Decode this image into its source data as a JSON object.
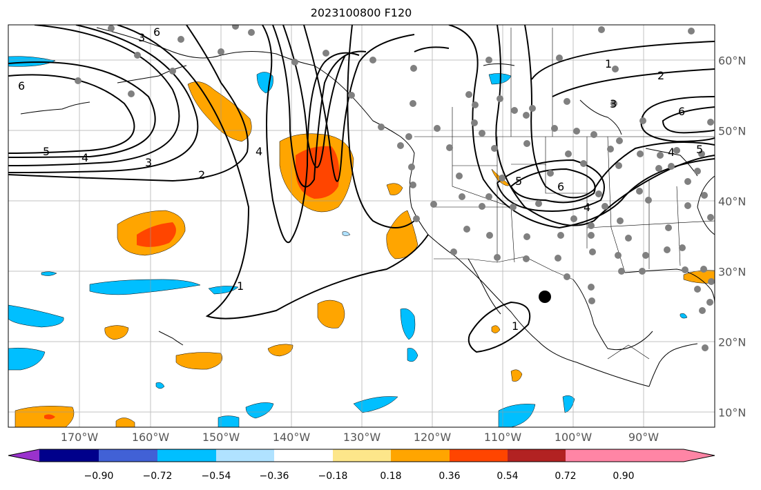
{
  "title": "2023100800 F120",
  "longitude_labels": [
    "170°W",
    "160°W",
    "150°W",
    "140°W",
    "130°W",
    "120°W",
    "110°W",
    "100°W",
    "90°W"
  ],
  "latitude_labels": [
    "60°N",
    "50°N",
    "40°N",
    "30°N",
    "20°N",
    "10°N"
  ],
  "contour_labels": [
    "6",
    "5",
    "4",
    "3",
    "2",
    "1"
  ],
  "colorbar": {
    "tick_labels": [
      "−0.90",
      "−0.72",
      "−0.54",
      "−0.36",
      "−0.18",
      "0.18",
      "0.36",
      "0.54",
      "0.72",
      "0.90"
    ],
    "colors": [
      "#9a32cd",
      "#00008b",
      "#4161d6",
      "#00bfff",
      "#b0e2ff",
      "#ffffff",
      "#fde68a",
      "#ffa500",
      "#ff4500",
      "#b22222",
      "#ff85a5"
    ]
  },
  "marker": "large black dot",
  "station_marker_color": "#808080"
}
